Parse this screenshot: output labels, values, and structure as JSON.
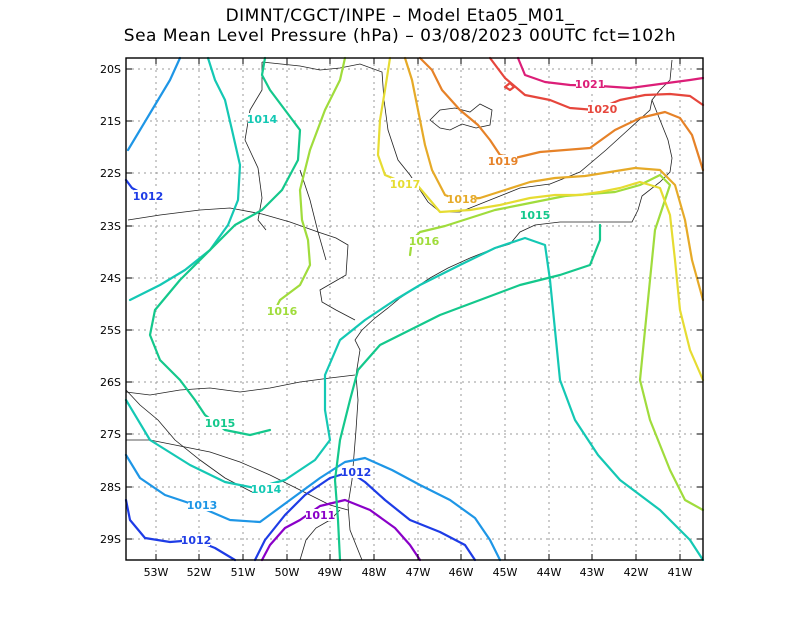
{
  "header": {
    "line1": "DIMNT/CGCT/INPE –  Model Eta05_M01_",
    "line2": "Sea Mean Level Pressure (hPa) – 03/08/2023 00UTC fct=102h"
  },
  "axes": {
    "lat_labels": [
      "20S",
      "21S",
      "22S",
      "23S",
      "24S",
      "25S",
      "26S",
      "27S",
      "28S",
      "29S"
    ],
    "lon_labels": [
      "53W",
      "52W",
      "51W",
      "50W",
      "49W",
      "48W",
      "47W",
      "46W",
      "45W",
      "44W",
      "43W",
      "42W",
      "41W"
    ],
    "lon_range": [
      -53.6,
      -40.5
    ],
    "lat_range": [
      -29.4,
      -19.8
    ]
  },
  "isobars": [
    {
      "value": "1011",
      "label": "1011",
      "color": "#8a00c8"
    },
    {
      "value": "1012",
      "label": "1012",
      "color": "#1e3ce6"
    },
    {
      "value": "1013",
      "label": "1013",
      "color": "#1e96e6"
    },
    {
      "value": "1014",
      "label": "1014",
      "color": "#14c8b4"
    },
    {
      "value": "1015",
      "label": "1015",
      "color": "#14c88c"
    },
    {
      "value": "1016",
      "label": "1016",
      "color": "#a0dc3c"
    },
    {
      "value": "1017",
      "label": "1017",
      "color": "#e6dc32"
    },
    {
      "value": "1018",
      "label": "1018",
      "color": "#e6aa28"
    },
    {
      "value": "1019",
      "label": "1019",
      "color": "#e68228"
    },
    {
      "value": "1020",
      "label": "1020",
      "color": "#e6463c"
    },
    {
      "value": "1021",
      "label": "1021",
      "color": "#dc1e78"
    }
  ]
}
